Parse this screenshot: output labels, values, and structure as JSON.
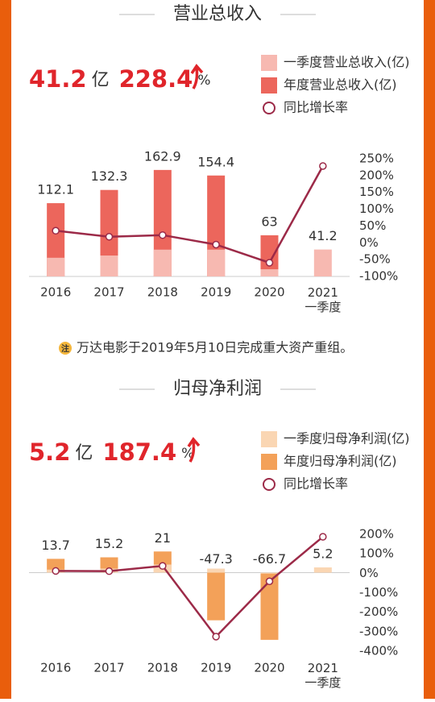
{
  "chart_data": [
    {
      "type": "bar",
      "title": "营业总收入",
      "categories": [
        "2016",
        "2017",
        "2018",
        "2019",
        "2020",
        "2021\n一季度"
      ],
      "series": [
        {
          "name": "一季度营业总收入(亿)",
          "color": "#f7b9b1",
          "values": [
            28.6,
            32,
            41,
            41,
            11,
            41.2
          ]
        },
        {
          "name": "年度营业总收入(亿)",
          "color": "#ec665c",
          "values": [
            112.1,
            132.3,
            162.9,
            154.4,
            63,
            null
          ]
        },
        {
          "name": "同比增长率",
          "color": "#9c2a48",
          "type": "line",
          "axis": "y2",
          "values": [
            36,
            18,
            23,
            -5.2,
            -59.2,
            228.4
          ]
        }
      ],
      "ylim": [
        0,
        180
      ],
      "y2lim": [
        -100,
        250
      ],
      "y2ticks": [
        {
          "value": 250,
          "label": "250%"
        },
        {
          "value": 200,
          "label": "200%"
        },
        {
          "value": 150,
          "label": "150%"
        },
        {
          "value": 100,
          "label": "100%"
        },
        {
          "value": 50,
          "label": "50%"
        },
        {
          "value": 0,
          "label": "0%"
        },
        {
          "value": -50,
          "label": "-50%"
        },
        {
          "value": -100,
          "label": "-100%"
        }
      ]
    },
    {
      "type": "bar",
      "title": "归母净利润",
      "categories": [
        "2016",
        "2017",
        "2018",
        "2019",
        "2020",
        "2021\n一季度"
      ],
      "series": [
        {
          "name": "一季度归母净利润(亿)",
          "color": "#fad6b3",
          "values": [
            3,
            4,
            8,
            4,
            -1,
            5.2
          ]
        },
        {
          "name": "年度归母净利润(亿)",
          "color": "#f3a159",
          "values": [
            13.7,
            15.2,
            21,
            -47.3,
            -66.7,
            null
          ]
        },
        {
          "name": "同比增长率",
          "color": "#9c2a48",
          "type": "line",
          "axis": "y2",
          "values": [
            12,
            11,
            38,
            -325,
            -41,
            187.4
          ]
        }
      ],
      "ylim": [
        -78,
        38
      ],
      "y2lim": [
        -400,
        200
      ],
      "y2ticks": [
        {
          "value": 200,
          "label": "200%"
        },
        {
          "value": 100,
          "label": "100%"
        },
        {
          "value": 0,
          "label": "0%"
        },
        {
          "value": -100,
          "label": "-100%"
        },
        {
          "value": -200,
          "label": "-200%"
        },
        {
          "value": -300,
          "label": "-300%"
        },
        {
          "value": -400,
          "label": "-400%"
        }
      ]
    }
  ],
  "headlines": [
    {
      "value": 41.2,
      "unit": "亿",
      "growth": 228.4,
      "growth_unit": "%"
    },
    {
      "value": 5.2,
      "unit": "亿",
      "growth": 187.4,
      "growth_unit": "%"
    }
  ],
  "note": {
    "icon": "注",
    "text": "万达电影于2019年5月10日完成重大资产重组。"
  }
}
